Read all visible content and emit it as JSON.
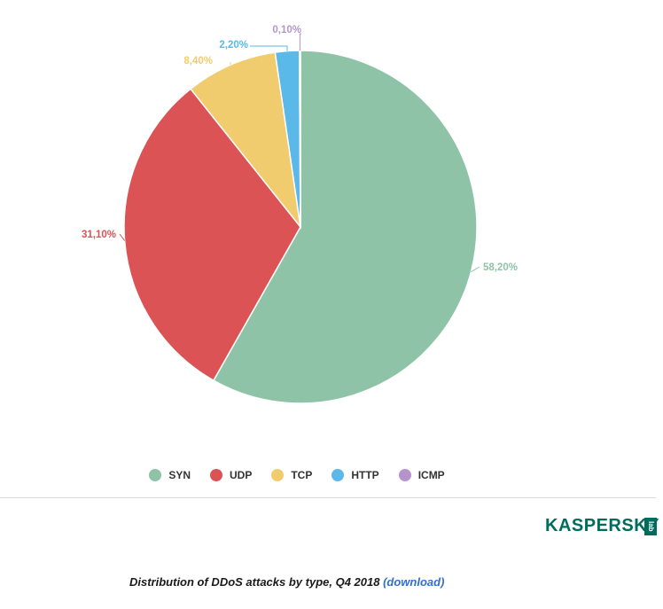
{
  "chart_data": {
    "type": "pie",
    "title": "",
    "categories": [
      "SYN",
      "UDP",
      "TCP",
      "HTTP",
      "ICMP"
    ],
    "values": [
      58.2,
      31.1,
      8.4,
      2.2,
      0.1
    ],
    "labels": [
      "58,20%",
      "31,10%",
      "8,40%",
      "2,20%",
      "0,10%"
    ],
    "colors": [
      "#8fc3a7",
      "#db5354",
      "#f0cc6e",
      "#5ab9e9",
      "#b594cd"
    ],
    "legend_position": "bottom"
  },
  "legend": {
    "items": [
      {
        "label": "SYN",
        "color": "#8fc3a7"
      },
      {
        "label": "UDP",
        "color": "#db5354"
      },
      {
        "label": "TCP",
        "color": "#f0cc6e"
      },
      {
        "label": "HTTP",
        "color": "#5ab9e9"
      },
      {
        "label": "ICMP",
        "color": "#b594cd"
      }
    ]
  },
  "logo": {
    "text": "KASPERSKY",
    "badge": "lab",
    "color": "#006d5c"
  },
  "caption": {
    "text": "Distribution of DDoS attacks by type, Q4 2018",
    "link_label": "(download)"
  }
}
